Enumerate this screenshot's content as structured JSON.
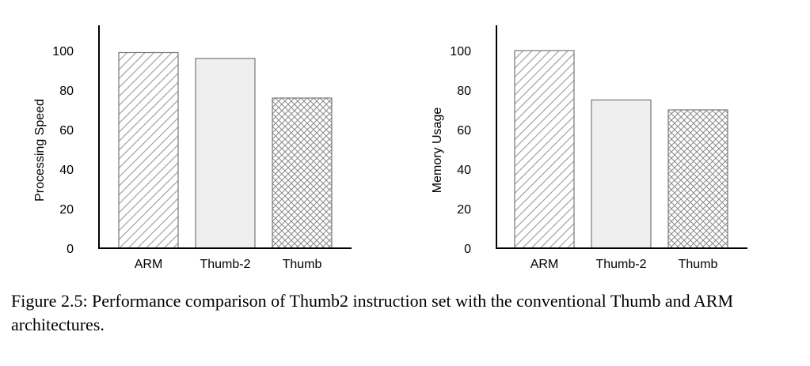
{
  "chart_data": [
    {
      "type": "bar",
      "categories": [
        "ARM",
        "Thumb-2",
        "Thumb"
      ],
      "values": [
        99,
        96,
        76
      ],
      "ylabel": "Processing Speed",
      "xlabel": "",
      "ylim": [
        0,
        110
      ],
      "yticks": [
        0,
        20,
        40,
        60,
        80,
        100
      ],
      "fills": [
        "diagonal-hatch",
        "solid-light-gray",
        "crosshatch"
      ],
      "grid": false
    },
    {
      "type": "bar",
      "categories": [
        "ARM",
        "Thumb-2",
        "Thumb"
      ],
      "values": [
        100,
        75,
        70
      ],
      "ylabel": "Memory Usage",
      "xlabel": "",
      "ylim": [
        0,
        110
      ],
      "yticks": [
        0,
        20,
        40,
        60,
        80,
        100
      ],
      "fills": [
        "diagonal-hatch",
        "solid-light-gray",
        "crosshatch"
      ],
      "grid": false
    }
  ],
  "caption": "Figure 2.5: Performance comparison of Thumb2 instruction set with the conventional Thumb and ARM architectures.",
  "colors": {
    "bar_fill": "#efefef",
    "bar_stroke": "#777777",
    "axis": "#000000",
    "hatch": "#9a9a9a"
  }
}
